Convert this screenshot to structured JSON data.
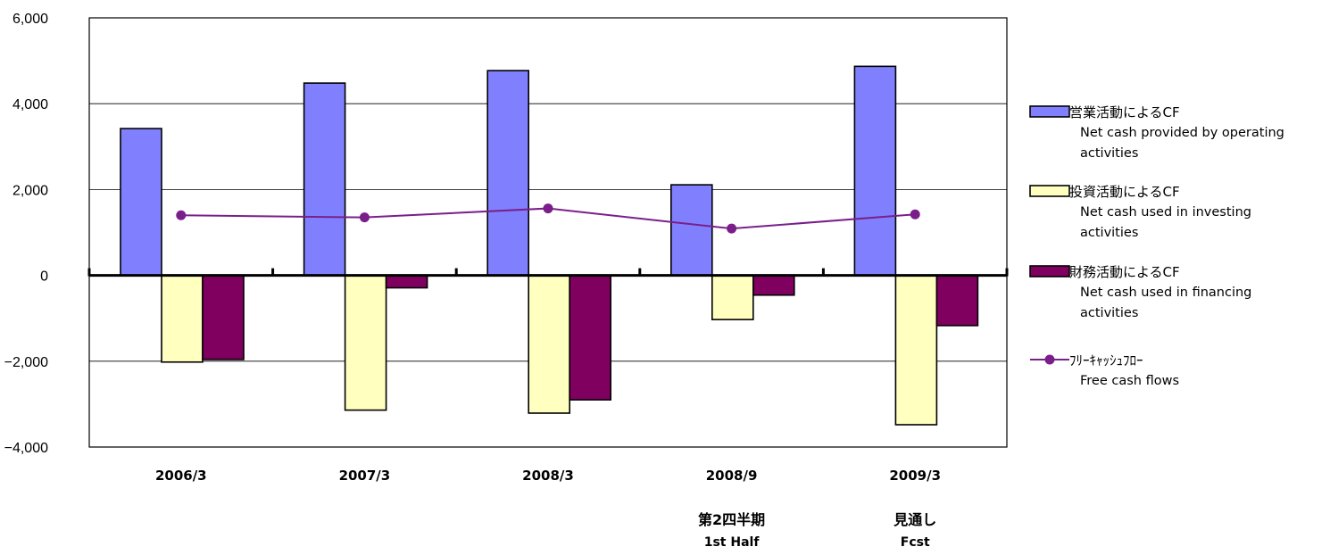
{
  "chart_data": {
    "type": "bar",
    "categories": [
      "2006/3",
      "2007/3",
      "2008/3",
      "2008/9",
      "2009/3"
    ],
    "category_sublabels": [
      {
        "jp": "",
        "en": ""
      },
      {
        "jp": "",
        "en": ""
      },
      {
        "jp": "",
        "en": ""
      },
      {
        "jp": "第2四半期",
        "en": "1st Half"
      },
      {
        "jp": "見通し",
        "en": "Fcst"
      }
    ],
    "ylim": [
      -4000,
      6000
    ],
    "yticks": [
      6000,
      4000,
      2000,
      0,
      -2000,
      -4000
    ],
    "ytick_labels": [
      "6,000",
      "4,000",
      "2,000",
      "0",
      "−2,000",
      "−4,000"
    ],
    "grid": true,
    "legend_position": "right",
    "series": [
      {
        "name_jp": "営業活動によるCF",
        "name_en_lines": [
          "Net cash provided by operating",
          "activities"
        ],
        "kind": "bar",
        "color": "#8080ff",
        "values": [
          3420,
          4480,
          4770,
          2110,
          4870
        ]
      },
      {
        "name_jp": "投資活動によるCF",
        "name_en_lines": [
          "Net cash used in investing",
          "activities"
        ],
        "kind": "bar",
        "color": "#ffffc0",
        "values": [
          -2020,
          -3140,
          -3210,
          -1030,
          -3480
        ]
      },
      {
        "name_jp": "財務活動によるCF",
        "name_en_lines": [
          "Net cash used in financing",
          "activities"
        ],
        "kind": "bar",
        "color": "#800060",
        "values": [
          -1960,
          -290,
          -2900,
          -460,
          -1170
        ]
      },
      {
        "name_jp": "ﾌﾘｰｷｬｯｼｭﾌﾛｰ",
        "name_en_lines": [
          "Free cash flows"
        ],
        "kind": "line",
        "color": "#7a1f8a",
        "values": [
          1400,
          1350,
          1560,
          1090,
          1420
        ]
      }
    ]
  }
}
